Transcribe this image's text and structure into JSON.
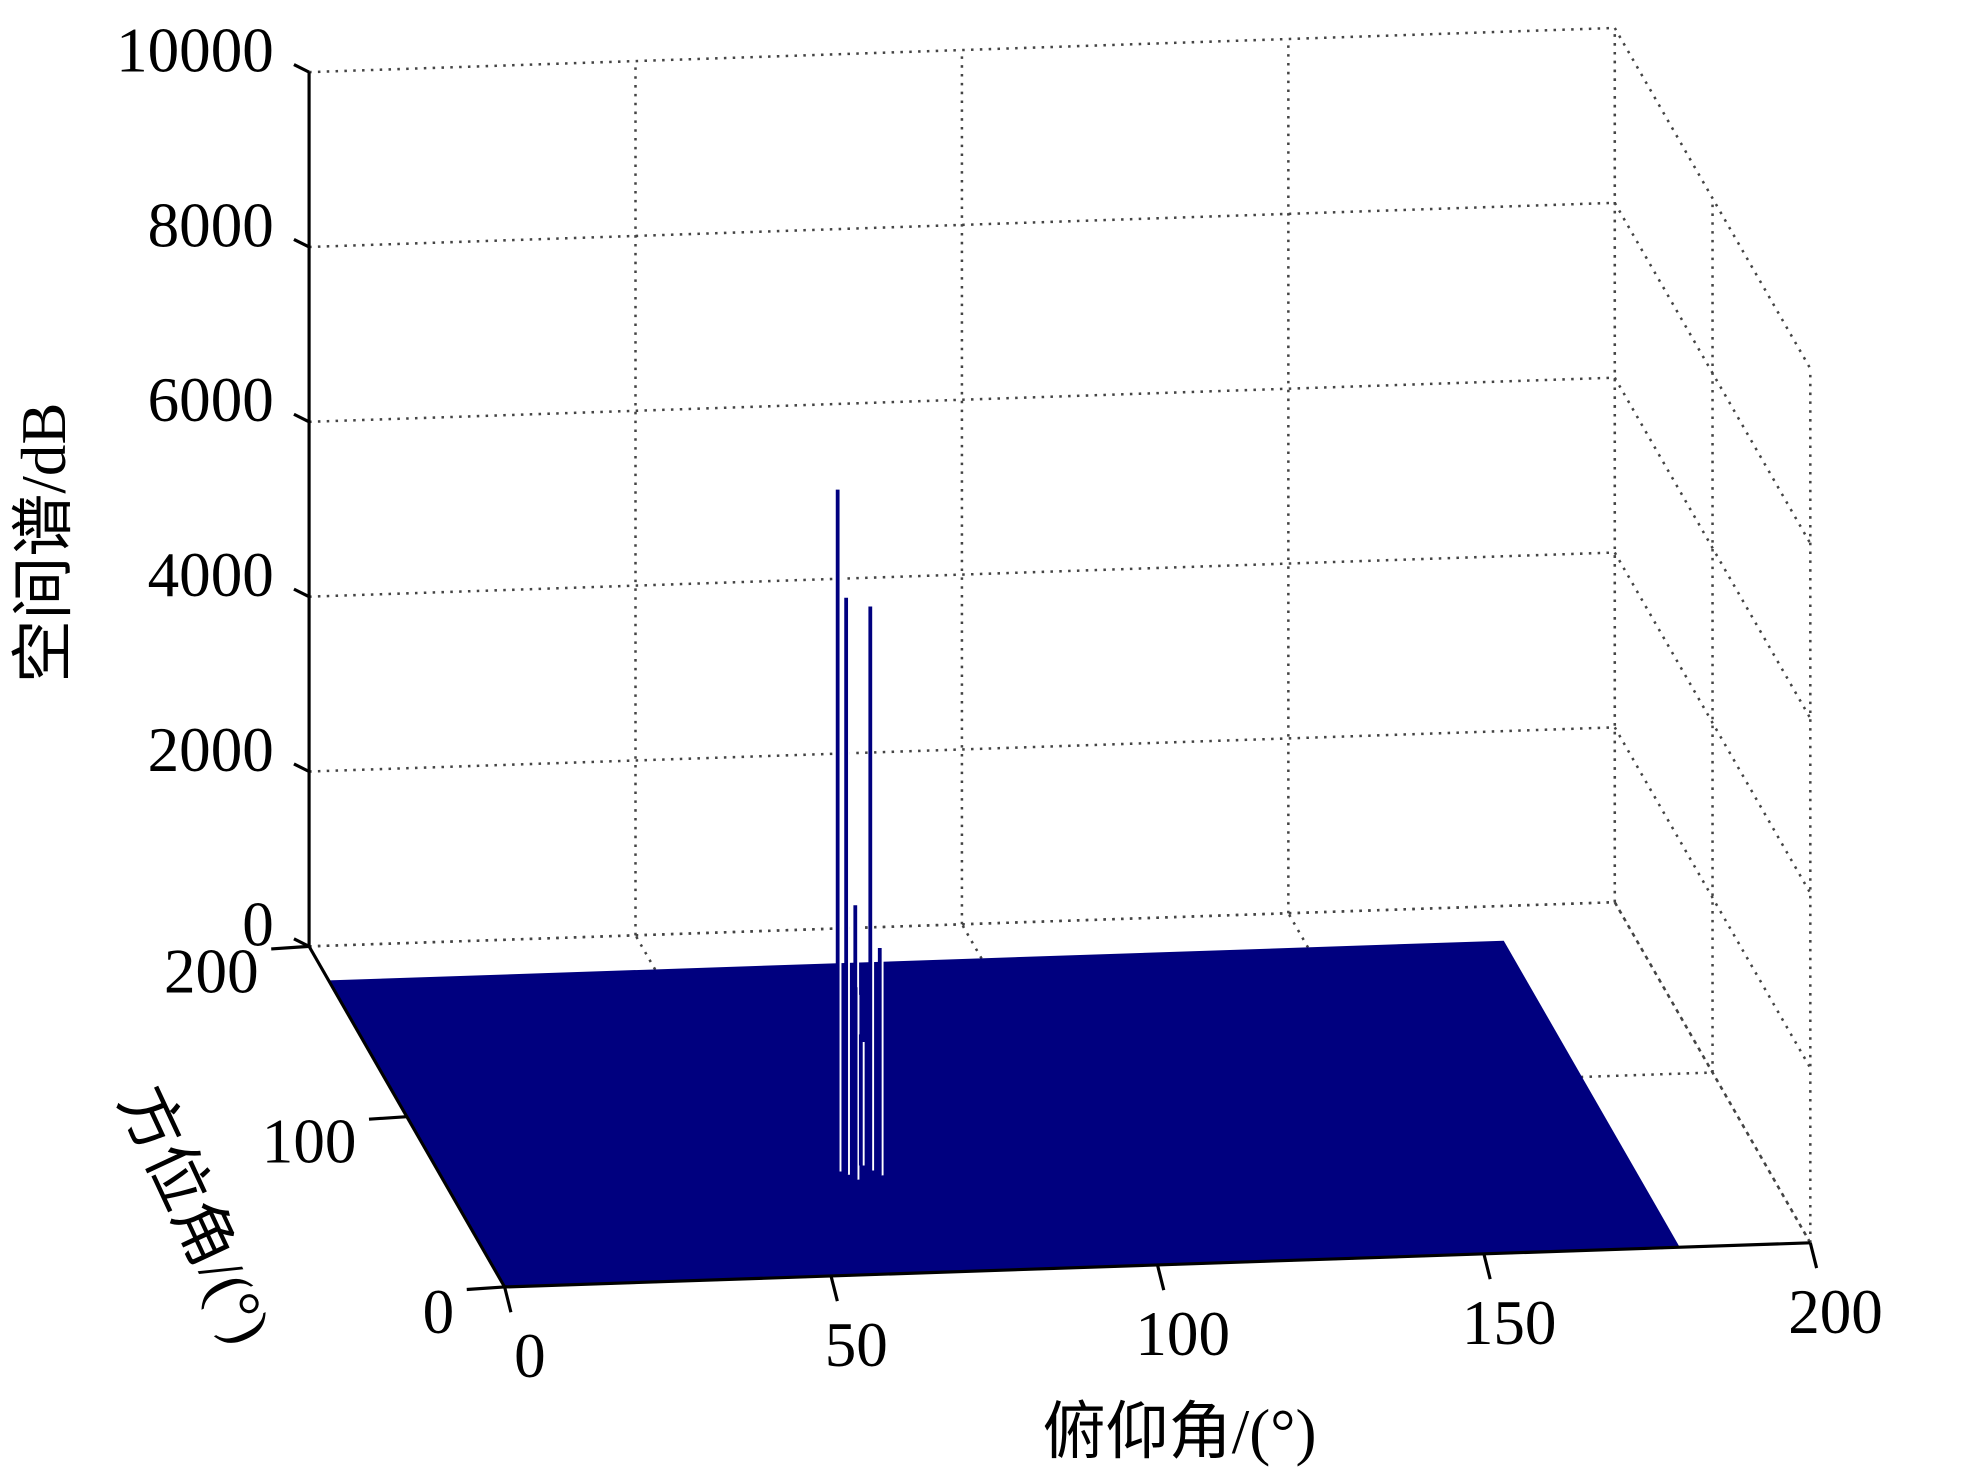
{
  "chart_data": {
    "type": "surface3d",
    "xlabel": "俯仰角/(°)",
    "ylabel": "方位角/(°)",
    "zlabel": "空间谱/dB",
    "xlim": [
      0,
      200
    ],
    "xticks": [
      0,
      50,
      100,
      150,
      200
    ],
    "ylim": [
      0,
      200
    ],
    "yticks": [
      0,
      100,
      200
    ],
    "zlim": [
      0,
      10000
    ],
    "zticks": [
      0,
      2000,
      4000,
      6000,
      8000,
      10000
    ],
    "grid": true,
    "color": "#00007f",
    "surface_extent": {
      "x": [
        0,
        180
      ],
      "y": [
        0,
        180
      ]
    },
    "peaks": {
      "x": [
        60,
        61,
        65,
        63,
        62,
        66,
        64
      ],
      "y": [
        60,
        58,
        60,
        62,
        55,
        57,
        63
      ],
      "z": [
        7800,
        6600,
        6450,
        3000,
        2200,
        2600,
        1500
      ]
    }
  }
}
